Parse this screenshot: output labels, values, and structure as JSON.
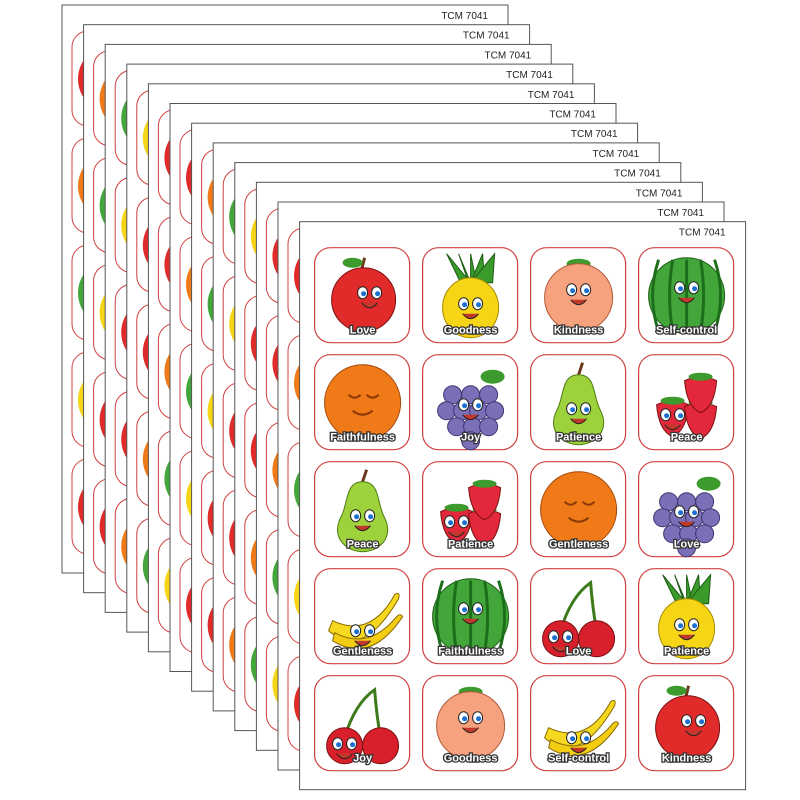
{
  "sheets": [
    {
      "code": "TCM 7041"
    },
    {
      "code": "TCM 7041"
    },
    {
      "code": "TCM 7041"
    },
    {
      "code": "TCM 7041"
    },
    {
      "code": "TCM 7041"
    },
    {
      "code": "TCM 7041"
    },
    {
      "code": "TCM 7041"
    },
    {
      "code": "TCM 7041"
    },
    {
      "code": "TCM 7041"
    },
    {
      "code": "TCM 7041"
    },
    {
      "code": "TCM 7041"
    },
    {
      "code": "TCM 7041"
    }
  ],
  "stickers": [
    [
      "Love",
      "Goodness",
      "Kindness",
      "Self-control"
    ],
    [
      "Faithfulness",
      "Joy",
      "Patience",
      "Peace"
    ],
    [
      "Peace",
      "Patience",
      "Gentleness",
      "Love"
    ],
    [
      "Gentleness",
      "Faithfulness",
      "Love",
      "Patience"
    ],
    [
      "Joy",
      "Goodness",
      "Self-control",
      "Kindness"
    ]
  ]
}
